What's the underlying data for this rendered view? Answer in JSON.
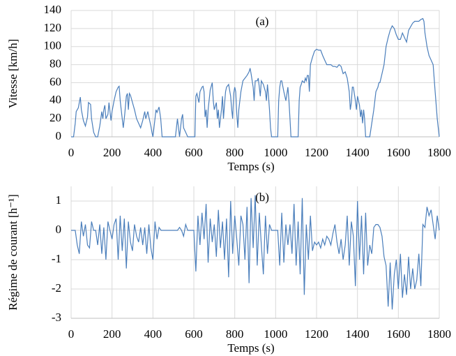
{
  "chart_data": [
    {
      "type": "line",
      "annotation": "(a)",
      "xlabel": "Temps (s)",
      "ylabel": "Vitesse [km/h]",
      "color": "#4a7ebb",
      "grid": true,
      "xlim": [
        0,
        1800
      ],
      "xticks": [
        0,
        200,
        400,
        600,
        800,
        1000,
        1200,
        1400,
        1600,
        1800
      ],
      "ylim": [
        0,
        140
      ],
      "yticks": [
        0,
        20,
        40,
        60,
        80,
        100,
        120,
        140
      ],
      "x": [
        0,
        12,
        20,
        25,
        35,
        45,
        50,
        60,
        70,
        80,
        85,
        95,
        100,
        110,
        120,
        130,
        140,
        150,
        155,
        160,
        165,
        170,
        180,
        185,
        195,
        200,
        210,
        220,
        230,
        235,
        240,
        250,
        255,
        262,
        270,
        275,
        280,
        285,
        290,
        300,
        310,
        320,
        330,
        340,
        350,
        360,
        365,
        370,
        375,
        380,
        390,
        395,
        400,
        410,
        415,
        420,
        430,
        438,
        445,
        460,
        510,
        520,
        525,
        530,
        540,
        545,
        550,
        560,
        570,
        605,
        610,
        615,
        625,
        630,
        640,
        645,
        650,
        655,
        660,
        665,
        670,
        680,
        690,
        695,
        700,
        710,
        715,
        720,
        725,
        735,
        740,
        745,
        750,
        755,
        760,
        770,
        780,
        785,
        790,
        795,
        800,
        805,
        810,
        815,
        820,
        830,
        840,
        850,
        860,
        870,
        875,
        880,
        890,
        895,
        900,
        910,
        915,
        920,
        925,
        930,
        940,
        950,
        955,
        960,
        965,
        970,
        975,
        980,
        1010,
        1015,
        1020,
        1025,
        1030,
        1040,
        1050,
        1060,
        1065,
        1070,
        1075,
        1110,
        1115,
        1120,
        1125,
        1130,
        1140,
        1145,
        1150,
        1155,
        1160,
        1165,
        1170,
        1180,
        1190,
        1200,
        1210,
        1220,
        1230,
        1240,
        1250,
        1260,
        1270,
        1280,
        1290,
        1300,
        1310,
        1320,
        1330,
        1340,
        1350,
        1360,
        1365,
        1370,
        1375,
        1380,
        1390,
        1395,
        1400,
        1410,
        1415,
        1420,
        1425,
        1430,
        1435,
        1440,
        1460,
        1470,
        1480,
        1490,
        1500,
        1505,
        1510,
        1520,
        1530,
        1540,
        1550,
        1560,
        1570,
        1580,
        1590,
        1600,
        1610,
        1620,
        1630,
        1640,
        1650,
        1660,
        1670,
        1680,
        1690,
        1700,
        1710,
        1720,
        1725,
        1730,
        1740,
        1750,
        1760,
        1770,
        1780,
        1790,
        1800
      ],
      "values": [
        0,
        0,
        15,
        28,
        32,
        44,
        30,
        18,
        12,
        22,
        38,
        36,
        20,
        5,
        0,
        0,
        12,
        28,
        20,
        30,
        35,
        20,
        25,
        38,
        18,
        28,
        40,
        50,
        55,
        56,
        40,
        20,
        10,
        25,
        45,
        48,
        30,
        48,
        46,
        38,
        30,
        20,
        15,
        10,
        18,
        28,
        20,
        24,
        28,
        22,
        12,
        5,
        0,
        20,
        30,
        27,
        33,
        20,
        0,
        0,
        0,
        20,
        10,
        0,
        20,
        25,
        10,
        5,
        0,
        0,
        45,
        48,
        38,
        50,
        55,
        56,
        50,
        22,
        30,
        10,
        30,
        52,
        60,
        40,
        30,
        38,
        20,
        30,
        10,
        30,
        45,
        20,
        36,
        50,
        55,
        58,
        45,
        30,
        20,
        48,
        55,
        50,
        25,
        10,
        30,
        50,
        62,
        65,
        68,
        72,
        76,
        70,
        55,
        40,
        62,
        62,
        65,
        55,
        45,
        62,
        58,
        50,
        40,
        58,
        45,
        30,
        10,
        0,
        0,
        40,
        55,
        62,
        62,
        50,
        40,
        55,
        40,
        20,
        0,
        0,
        40,
        55,
        58,
        62,
        60,
        65,
        62,
        68,
        68,
        50,
        80,
        88,
        95,
        97,
        96,
        96,
        90,
        85,
        80,
        80,
        80,
        78,
        78,
        77,
        80,
        78,
        70,
        72,
        65,
        50,
        30,
        38,
        55,
        55,
        40,
        30,
        45,
        35,
        22,
        30,
        15,
        30,
        20,
        0,
        0,
        15,
        30,
        50,
        55,
        60,
        60,
        70,
        80,
        100,
        110,
        118,
        123,
        120,
        113,
        108,
        108,
        115,
        110,
        105,
        118,
        122,
        126,
        128,
        128,
        128,
        130,
        131,
        128,
        115,
        100,
        90,
        85,
        80,
        50,
        20,
        0
      ]
    },
    {
      "type": "line",
      "annotation": "(b)",
      "xlabel": "Temps (s)",
      "ylabel": "Régime de courant [h⁻¹]",
      "color": "#4a7ebb",
      "grid": true,
      "xlim": [
        0,
        1800
      ],
      "xticks": [
        0,
        200,
        400,
        600,
        800,
        1000,
        1200,
        1400,
        1600,
        1800
      ],
      "ylim": [
        -3,
        1.5
      ],
      "yticks": [
        -3,
        -2,
        -1,
        0,
        1
      ],
      "x": [
        0,
        10,
        20,
        30,
        40,
        50,
        60,
        70,
        80,
        90,
        100,
        110,
        120,
        130,
        140,
        150,
        160,
        170,
        180,
        190,
        200,
        210,
        220,
        230,
        240,
        250,
        260,
        270,
        280,
        290,
        300,
        310,
        320,
        330,
        340,
        350,
        360,
        370,
        380,
        390,
        400,
        410,
        420,
        430,
        440,
        450,
        460,
        470,
        480,
        490,
        500,
        510,
        520,
        530,
        540,
        550,
        560,
        570,
        580,
        590,
        600,
        610,
        620,
        630,
        640,
        650,
        660,
        670,
        680,
        690,
        700,
        710,
        720,
        730,
        740,
        750,
        760,
        770,
        780,
        790,
        800,
        810,
        820,
        830,
        840,
        850,
        860,
        870,
        880,
        890,
        900,
        910,
        920,
        930,
        940,
        950,
        960,
        970,
        980,
        990,
        1000,
        1010,
        1020,
        1030,
        1040,
        1050,
        1060,
        1070,
        1080,
        1090,
        1100,
        1110,
        1120,
        1130,
        1140,
        1150,
        1160,
        1170,
        1180,
        1190,
        1200,
        1210,
        1220,
        1230,
        1240,
        1250,
        1260,
        1270,
        1280,
        1290,
        1300,
        1310,
        1320,
        1330,
        1340,
        1350,
        1360,
        1370,
        1380,
        1390,
        1400,
        1410,
        1420,
        1430,
        1440,
        1450,
        1460,
        1470,
        1480,
        1490,
        1500,
        1510,
        1520,
        1530,
        1540,
        1550,
        1560,
        1570,
        1580,
        1590,
        1600,
        1610,
        1620,
        1630,
        1640,
        1650,
        1660,
        1670,
        1680,
        1690,
        1700,
        1710,
        1720,
        1730,
        1740,
        1750,
        1760,
        1770,
        1780,
        1790,
        1800
      ],
      "values": [
        0,
        0,
        0,
        -0.5,
        -0.8,
        0.3,
        -0.2,
        0.2,
        -0.5,
        -0.6,
        0.3,
        0,
        0,
        -0.5,
        0.2,
        -0.8,
        0.1,
        -1.0,
        0.3,
        0,
        -0.3,
        0.2,
        0.4,
        -1.0,
        0.5,
        -0.7,
        0.4,
        -1.3,
        0.3,
        -0.4,
        -0.7,
        0.2,
        -0.2,
        -0.4,
        0.1,
        -0.5,
        0.1,
        -0.8,
        0.2,
        -0.6,
        -1.0,
        0.3,
        -0.3,
        0.1,
        0,
        0,
        0,
        0,
        0,
        0,
        0,
        0,
        0,
        0.1,
        0,
        -0.2,
        0.2,
        0,
        0,
        0,
        0,
        -1.4,
        0.5,
        -0.5,
        0.6,
        -0.3,
        0.9,
        -1.1,
        0.4,
        -0.4,
        0.2,
        -0.9,
        0.7,
        -0.6,
        0.3,
        -1.0,
        0.4,
        -1.6,
        1.0,
        -0.8,
        0.5,
        -0.3,
        -1.2,
        0.5,
        0.2,
        -1.0,
        0.8,
        -1.8,
        1.1,
        -0.6,
        1.2,
        -1.2,
        0.6,
        -0.5,
        -1.5,
        0.5,
        -0.8,
        0.2,
        0,
        0,
        0,
        0,
        -1.2,
        0.6,
        -1.1,
        0.2,
        -0.5,
        0.2,
        -0.8,
        0.9,
        -1.2,
        0.3,
        -1.5,
        1.1,
        -2.2,
        0.2,
        -1.0,
        0.5,
        -0.7,
        -0.4,
        -0.5,
        -0.4,
        -0.6,
        -0.3,
        -0.5,
        -0.2,
        -0.3,
        -0.5,
        -0.1,
        0.2,
        -0.4,
        -0.8,
        -0.3,
        -1.0,
        -0.5,
        0.5,
        -1.2,
        0.3,
        -0.2,
        -1.9,
        1.0,
        -1.0,
        0.5,
        -1.5,
        0.6,
        -1.2,
        -0.5,
        -0.8,
        0.1,
        0.2,
        0.2,
        0.1,
        -0.2,
        -0.9,
        -1.2,
        -2.6,
        -1.1,
        -2.7,
        -1.5,
        -1.0,
        -2.0,
        -0.8,
        -2.3,
        -1.5,
        -2.2,
        -0.9,
        -2.0,
        -1.3,
        -2.0,
        -1.7,
        -0.8,
        -1.9,
        0.2,
        0.1,
        0.8,
        0.5,
        0.7,
        0.2,
        -0.3,
        0.5,
        0
      ]
    }
  ]
}
